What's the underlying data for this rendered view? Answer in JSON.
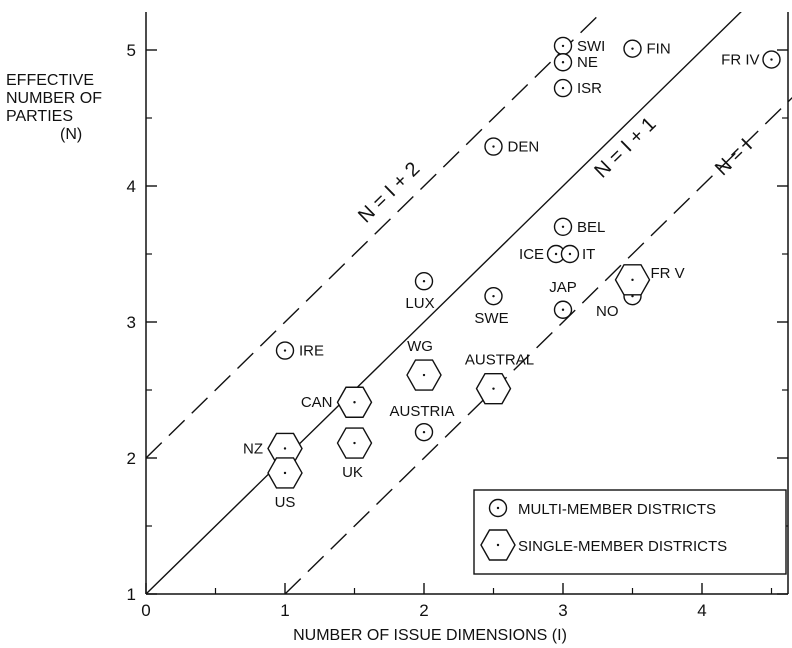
{
  "chart_data": {
    "type": "scatter",
    "xlabel": "NUMBER OF ISSUE DIMENSIONS (I)",
    "ylabel_lines": [
      "EFFECTIVE",
      "NUMBER OF",
      "PARTIES"
    ],
    "ylabel_unit": "(N)",
    "xlim": [
      0,
      4.7
    ],
    "ylim": [
      1,
      5.3
    ],
    "x_ticks": [
      0,
      1,
      2,
      3,
      4
    ],
    "y_ticks": [
      1,
      2,
      3,
      4,
      5
    ],
    "lines": [
      {
        "label": "N = I + 2",
        "intercept": 2,
        "slope": 1,
        "style": "dashed"
      },
      {
        "label": "N = I + 1",
        "intercept": 1,
        "slope": 1,
        "style": "solid"
      },
      {
        "label": "N = I",
        "intercept": 0,
        "slope": 1,
        "style": "dashed"
      }
    ],
    "series": [
      {
        "name": "MULTI-MEMBER DISTRICTS",
        "marker": "circle",
        "points": [
          {
            "label": "SWI",
            "x": 3.0,
            "y": 5.03
          },
          {
            "label": "FIN",
            "x": 3.5,
            "y": 5.01
          },
          {
            "label": "NE",
            "x": 3.0,
            "y": 4.91
          },
          {
            "label": "FR IV",
            "x": 4.5,
            "y": 4.93
          },
          {
            "label": "ISR",
            "x": 3.0,
            "y": 4.72
          },
          {
            "label": "DEN",
            "x": 2.5,
            "y": 4.29
          },
          {
            "label": "BEL",
            "x": 3.0,
            "y": 3.7
          },
          {
            "label": "ICE",
            "x": 2.95,
            "y": 3.5
          },
          {
            "label": "IT",
            "x": 3.05,
            "y": 3.5
          },
          {
            "label": "LUX",
            "x": 2.0,
            "y": 3.3
          },
          {
            "label": "SWE",
            "x": 2.5,
            "y": 3.19
          },
          {
            "label": "JAP",
            "x": 3.0,
            "y": 3.09
          },
          {
            "label": "NO",
            "x": 3.5,
            "y": 3.19
          },
          {
            "label": "IRE",
            "x": 1.0,
            "y": 2.79
          },
          {
            "label": "AUSTRIA",
            "x": 2.0,
            "y": 2.19
          }
        ]
      },
      {
        "name": "SINGLE-MEMBER DISTRICTS",
        "marker": "hexagon",
        "points": [
          {
            "label": "FR V",
            "x": 3.5,
            "y": 3.31
          },
          {
            "label": "WG",
            "x": 2.0,
            "y": 2.61
          },
          {
            "label": "AUSTRAL",
            "x": 2.5,
            "y": 2.51
          },
          {
            "label": "CAN",
            "x": 1.5,
            "y": 2.41
          },
          {
            "label": "UK",
            "x": 1.5,
            "y": 2.11
          },
          {
            "label": "NZ",
            "x": 1.0,
            "y": 2.07
          },
          {
            "label": "US",
            "x": 1.0,
            "y": 1.89
          }
        ]
      }
    ],
    "legend": {
      "placement": "bottom-right",
      "entries": [
        "MULTI-MEMBER DISTRICTS",
        "SINGLE-MEMBER DISTRICTS"
      ]
    },
    "grid": false
  }
}
